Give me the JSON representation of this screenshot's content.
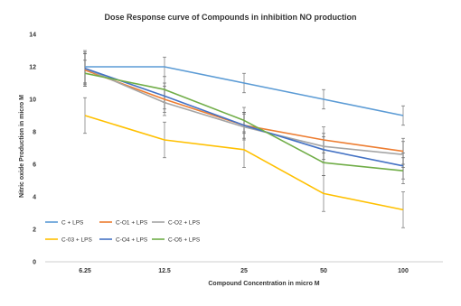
{
  "chart_data": {
    "type": "line",
    "title": "Dose Response curve of Compounds in inhibition NO production",
    "xlabel": "Compound Concentration in micro M",
    "ylabel": "Nitric oxide Production in micro M",
    "categories": [
      "6.25",
      "12.5",
      "25",
      "50",
      "100"
    ],
    "ylim": [
      0,
      14
    ],
    "yticks": [
      "0",
      "2",
      "4",
      "6",
      "8",
      "10",
      "12",
      "14"
    ],
    "grid": false,
    "legend_position": "bottom-left",
    "series": [
      {
        "name": "C + LPS",
        "color": "#5b9bd5",
        "values": [
          12.0,
          12.0,
          11.0,
          10.0,
          9.0
        ],
        "errors": [
          1.0,
          0.6,
          0.6,
          0.6,
          0.6
        ]
      },
      {
        "name": "C-O1 + LPS",
        "color": "#ed7d31",
        "values": [
          11.8,
          10.0,
          8.4,
          7.5,
          6.8
        ],
        "errors": [
          1.0,
          0.8,
          0.8,
          0.8,
          0.8
        ]
      },
      {
        "name": "C-O2 + LPS",
        "color": "#a5a5a5",
        "values": [
          11.9,
          9.8,
          8.3,
          7.1,
          6.6
        ],
        "errors": [
          1.0,
          0.8,
          0.8,
          0.8,
          0.8
        ]
      },
      {
        "name": "C-03 + LPS",
        "color": "#ffc000",
        "values": [
          9.0,
          7.5,
          6.9,
          4.2,
          3.2
        ],
        "errors": [
          1.1,
          1.1,
          1.1,
          1.1,
          1.1
        ]
      },
      {
        "name": "C-O4 + LPS",
        "color": "#4472c4",
        "values": [
          11.9,
          10.2,
          8.4,
          6.9,
          5.9
        ],
        "errors": [
          0.9,
          0.8,
          0.8,
          0.8,
          0.8
        ]
      },
      {
        "name": "C-O5 + LPS",
        "color": "#70ad47",
        "values": [
          11.6,
          10.6,
          8.7,
          6.1,
          5.6
        ],
        "errors": [
          0.8,
          0.8,
          0.8,
          0.8,
          0.8
        ]
      }
    ]
  }
}
